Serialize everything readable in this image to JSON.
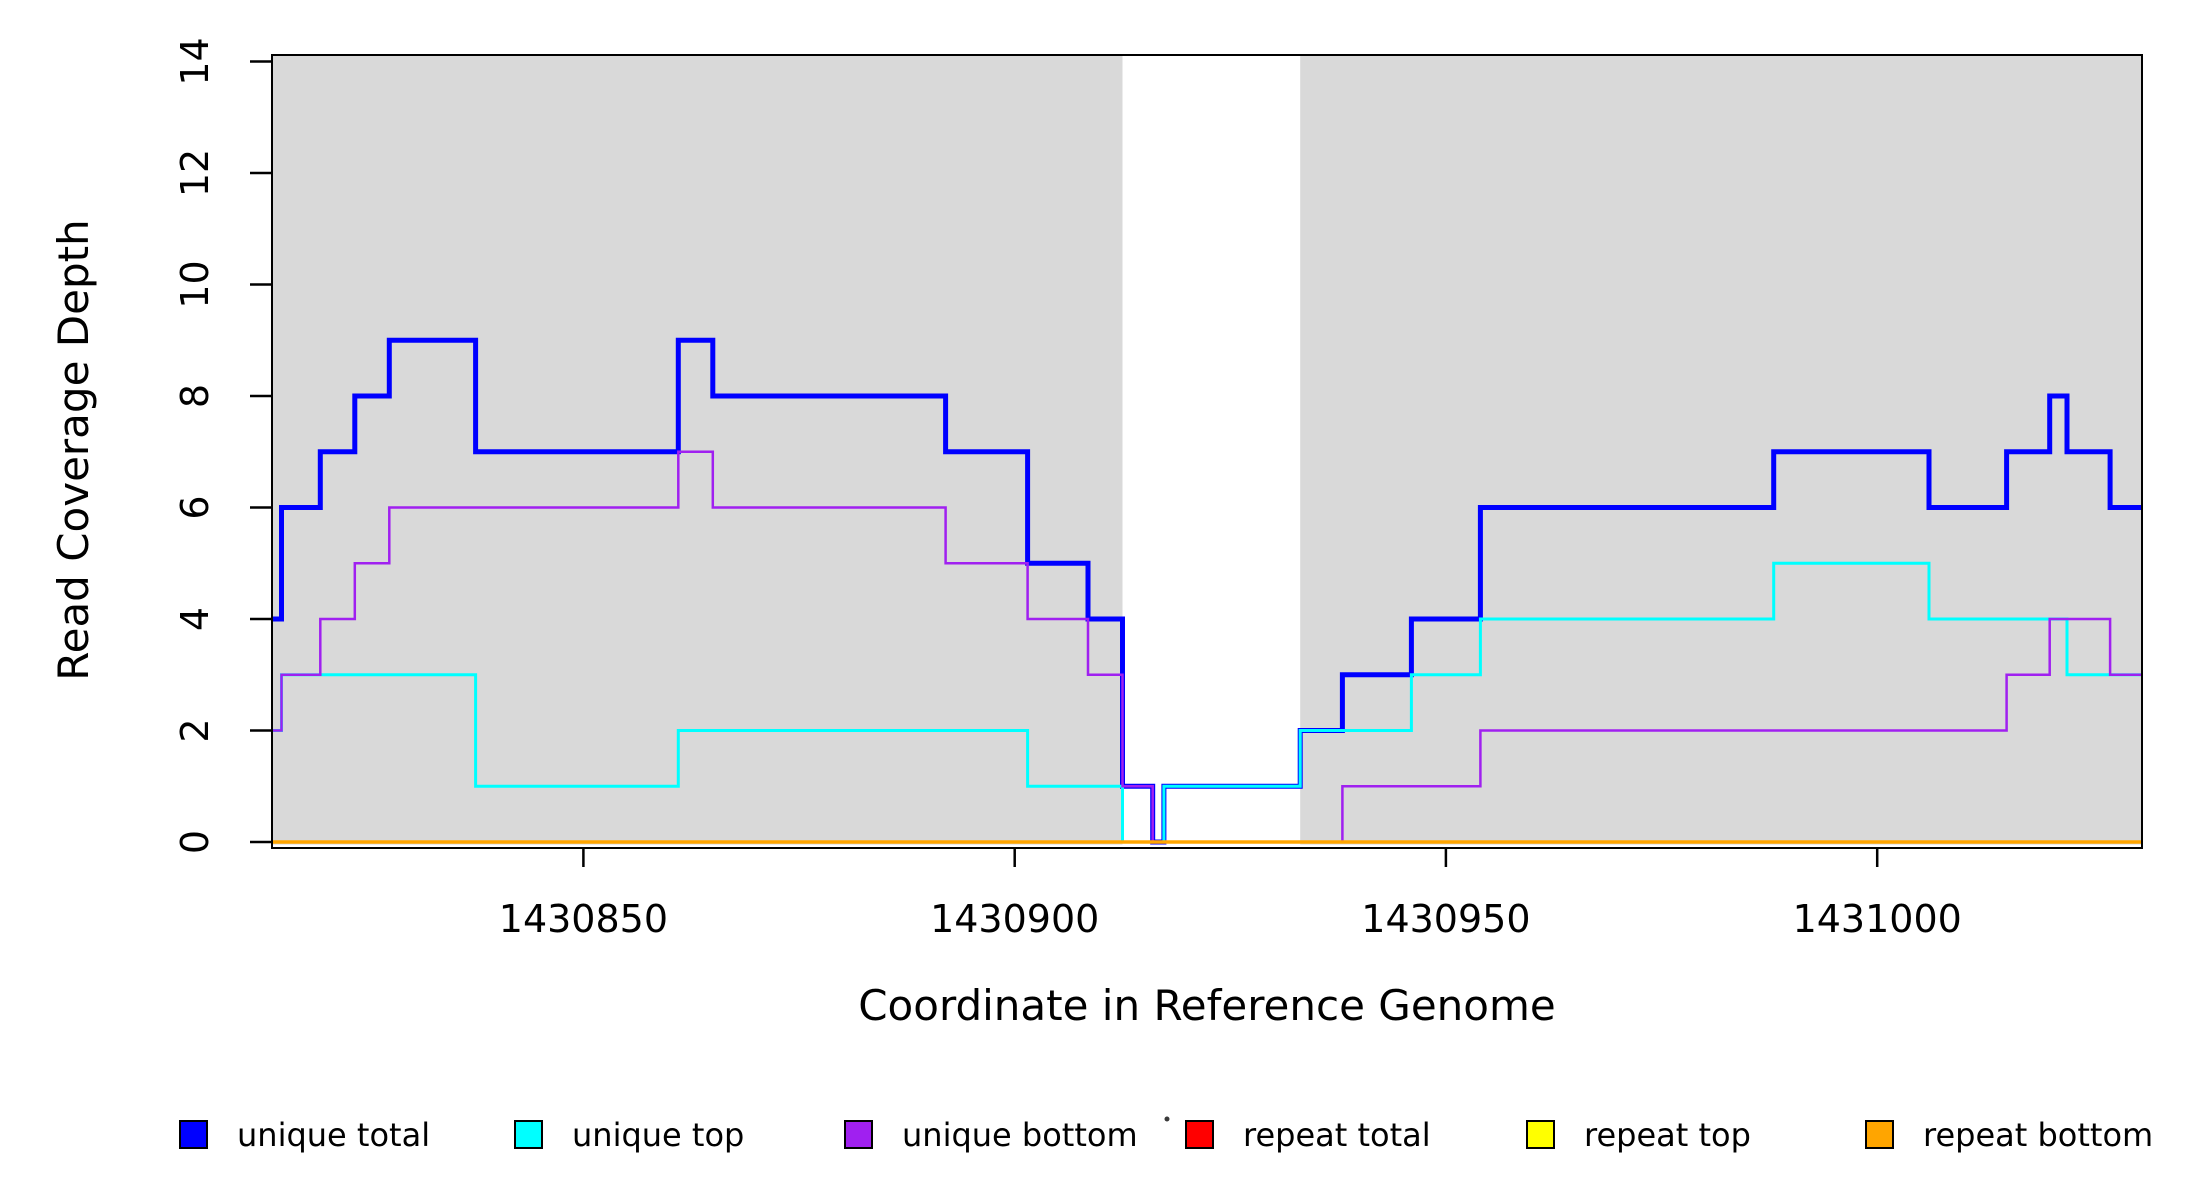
{
  "figure": {
    "background": "#FFFFFF",
    "title": ""
  },
  "chart_data": {
    "type": "line",
    "subtype": "step-coverage",
    "title": "",
    "xlabel": "Coordinate in Reference Genome",
    "ylabel": "Read Coverage Depth",
    "xlim": [
      1430813.9,
      1431030.7
    ],
    "ylim": [
      0,
      14
    ],
    "x_ticks": [
      1430850,
      1430900,
      1430950,
      1431000
    ],
    "y_ticks": [
      0,
      2,
      4,
      6,
      8,
      10,
      12,
      14
    ],
    "grid": false,
    "legend_position": "bottom",
    "shaded_regions": {
      "color": "#D9D9D9",
      "ranges": [
        [
          1430813.9,
          1430912.5
        ],
        [
          1430933.1,
          1431030.7
        ]
      ]
    },
    "series": [
      {
        "name": "unique total",
        "color": "#0000FF",
        "line_width": 5,
        "start_value": 4,
        "changes": [
          [
            1430815,
            6
          ],
          [
            1430819.5,
            7
          ],
          [
            1430823.5,
            8
          ],
          [
            1430827.5,
            9
          ],
          [
            1430837.5,
            7
          ],
          [
            1430861,
            9
          ],
          [
            1430865,
            8
          ],
          [
            1430892,
            7
          ],
          [
            1430901.5,
            5
          ],
          [
            1430908.5,
            4
          ],
          [
            1430912.5,
            1
          ],
          [
            1430916,
            0
          ],
          [
            1430917.3,
            1
          ],
          [
            1430933.1,
            2
          ],
          [
            1430938,
            3
          ],
          [
            1430946,
            4
          ],
          [
            1430954,
            6
          ],
          [
            1430988,
            7
          ],
          [
            1431006,
            6
          ],
          [
            1431015,
            7
          ],
          [
            1431020,
            8
          ],
          [
            1431022,
            7
          ],
          [
            1431027,
            6
          ]
        ]
      },
      {
        "name": "unique top",
        "color": "#00FFFF",
        "line_width": 3,
        "start_value": 2,
        "changes": [
          [
            1430815,
            3
          ],
          [
            1430837.5,
            1
          ],
          [
            1430861,
            2
          ],
          [
            1430901.5,
            1
          ],
          [
            1430912.5,
            0
          ],
          [
            1430917.3,
            1
          ],
          [
            1430933.1,
            2
          ],
          [
            1430946,
            3
          ],
          [
            1430954,
            4
          ],
          [
            1430988,
            5
          ],
          [
            1431006,
            4
          ],
          [
            1431022,
            3
          ]
        ]
      },
      {
        "name": "unique bottom",
        "color": "#A020F0",
        "line_width": 2.5,
        "start_value": 2,
        "changes": [
          [
            1430815,
            3
          ],
          [
            1430819.5,
            4
          ],
          [
            1430823.5,
            5
          ],
          [
            1430827.5,
            6
          ],
          [
            1430861,
            7
          ],
          [
            1430865,
            6
          ],
          [
            1430892,
            5
          ],
          [
            1430901.5,
            4
          ],
          [
            1430908.5,
            3
          ],
          [
            1430912.5,
            1
          ],
          [
            1430916,
            0
          ],
          [
            1430938,
            1
          ],
          [
            1430954,
            2
          ],
          [
            1431015,
            3
          ],
          [
            1431020,
            4
          ],
          [
            1431027,
            3
          ]
        ]
      },
      {
        "name": "repeat total",
        "color": "#FF0000",
        "line_width": 2.5,
        "start_value": 0,
        "changes": []
      },
      {
        "name": "repeat top",
        "color": "#FFFF00",
        "line_width": 2.5,
        "start_value": 0,
        "changes": []
      },
      {
        "name": "repeat bottom",
        "color": "#FFA500",
        "line_width": 3.5,
        "start_value": 0,
        "changes": []
      }
    ]
  },
  "legend": {
    "items": [
      {
        "label": "unique total",
        "color": "#0000FF"
      },
      {
        "label": "unique top",
        "color": "#00FFFF"
      },
      {
        "label": "unique bottom",
        "color": "#A020F0"
      },
      {
        "label": "repeat total",
        "color": "#FF0000"
      },
      {
        "label": "repeat top",
        "color": "#FFFF00"
      },
      {
        "label": "repeat bottom",
        "color": "#FFA500"
      }
    ],
    "stray_mark": "."
  }
}
